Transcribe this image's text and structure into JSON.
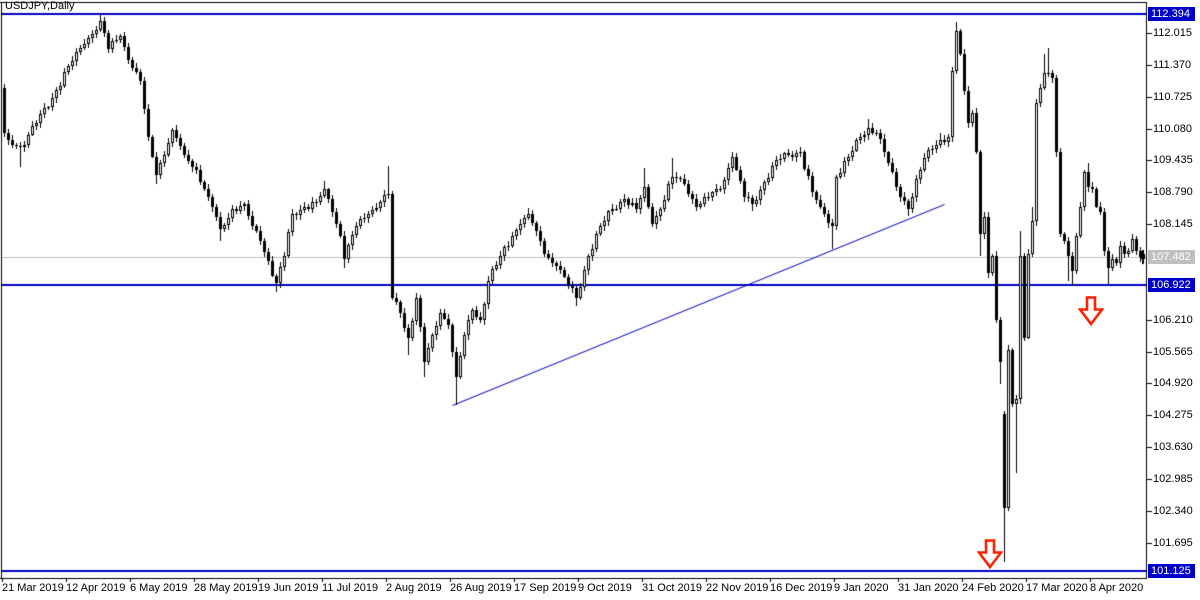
{
  "window": {
    "symbol_label": "USDJPY,Daily"
  },
  "colors": {
    "background": "#FFFFFF",
    "candle_outline": "#000000",
    "bull_fill": "#FFFFFF",
    "bear_fill": "#000000",
    "object_blue": "#0000C8",
    "current_price_gray": "#C0C0C0",
    "arrow_red": "#FF2200",
    "axis_black": "#000000"
  },
  "y_axis": {
    "ticks": [
      "112.015",
      "111.370",
      "110.725",
      "110.080",
      "109.435",
      "108.790",
      "108.145",
      "106.210",
      "105.565",
      "104.920",
      "104.275",
      "103.630",
      "102.985",
      "102.340",
      "101.695"
    ],
    "badges": [
      {
        "value": "112.394",
        "style": "blue"
      },
      {
        "value": "107.482",
        "style": "gray"
      },
      {
        "value": "106.922",
        "style": "blue"
      },
      {
        "value": "101.125",
        "style": "blue"
      }
    ]
  },
  "x_axis": {
    "labels": [
      "21 Mar 2019",
      "12 Apr 2019",
      "6 May 2019",
      "28 May 2019",
      "19 Jun 2019",
      "11 Jul 2019",
      "2 Aug 2019",
      "26 Aug 2019",
      "17 Sep 2019",
      "9 Oct 2019",
      "31 Oct 2019",
      "22 Nov 2019",
      "16 Dec 2019",
      "9 Jan 2020",
      "31 Jan 2020",
      "24 Feb 2020",
      "17 Mar 2020",
      "8 Apr 2020"
    ],
    "bars_per_label": 16
  },
  "chart_data": {
    "type": "candlestick",
    "title": "USDJPY,Daily",
    "symbol": "USDJPY",
    "timeframe": "Daily",
    "ylim": [
      100.8,
      112.6
    ],
    "y_tick_step": 0.645,
    "grid": false,
    "bars_total": 285,
    "first_bar_open": 110.9,
    "last_price": 107.482,
    "x_labels": [
      "21 Mar 2019",
      "12 Apr 2019",
      "6 May 2019",
      "28 May 2019",
      "19 Jun 2019",
      "11 Jul 2019",
      "2 Aug 2019",
      "26 Aug 2019",
      "17 Sep 2019",
      "9 Oct 2019",
      "31 Oct 2019",
      "22 Nov 2019",
      "16 Dec 2019",
      "9 Jan 2020",
      "31 Jan 2020",
      "24 Feb 2020",
      "17 Mar 2020",
      "8 Apr 2020"
    ],
    "objects": {
      "horizontal_lines": [
        112.394,
        106.922,
        101.125
      ],
      "current_price_line": 107.482,
      "trendline": {
        "from_bar": 112,
        "from_price": 104.49,
        "to_bar": 235,
        "to_price": 108.55
      },
      "arrows_down": [
        {
          "bar": 246.5,
          "tip_price": 101.19
        },
        {
          "bar": 271.8,
          "tip_price": 106.1
        }
      ]
    },
    "close_anchors_note": "swing points read from chart: [bar, close, wick_low?, wick_high?, open_override?]",
    "close_anchors": [
      [
        0,
        110.0
      ],
      [
        1,
        109.85
      ],
      [
        4,
        109.7,
        109.3
      ],
      [
        8,
        110.2
      ],
      [
        12,
        110.7
      ],
      [
        16,
        111.35
      ],
      [
        20,
        111.8
      ],
      [
        24,
        112.25,
        null,
        112.39
      ],
      [
        26,
        111.7
      ],
      [
        29,
        111.95
      ],
      [
        32,
        111.3
      ],
      [
        34,
        111.05
      ],
      [
        36,
        109.9
      ],
      [
        38,
        109.15,
        108.95
      ],
      [
        42,
        110.05
      ],
      [
        45,
        109.55
      ],
      [
        48,
        109.25
      ],
      [
        51,
        108.7
      ],
      [
        54,
        108.05,
        107.8
      ],
      [
        57,
        108.45
      ],
      [
        60,
        108.55
      ],
      [
        62,
        108.1
      ],
      [
        64,
        107.8
      ],
      [
        66,
        107.4
      ],
      [
        68,
        106.95,
        106.78
      ],
      [
        70,
        107.5
      ],
      [
        72,
        108.35
      ],
      [
        75,
        108.5
      ],
      [
        78,
        108.6
      ],
      [
        80,
        108.85,
        null,
        109.02
      ],
      [
        82,
        108.4
      ],
      [
        84,
        107.9
      ],
      [
        85,
        107.45,
        107.25
      ],
      [
        88,
        108.1
      ],
      [
        91,
        108.35
      ],
      [
        94,
        108.6
      ],
      [
        96,
        108.75,
        null,
        109.32
      ],
      [
        97,
        106.65
      ],
      [
        99,
        106.35
      ],
      [
        101,
        105.85,
        105.5
      ],
      [
        103,
        106.65
      ],
      [
        105,
        105.35,
        105.05
      ],
      [
        107,
        105.9
      ],
      [
        109,
        106.35
      ],
      [
        111,
        106.1
      ],
      [
        113,
        105.05,
        104.49
      ],
      [
        115,
        105.9
      ],
      [
        117,
        106.4
      ],
      [
        119,
        106.2
      ],
      [
        121,
        107.0
      ],
      [
        124,
        107.5
      ],
      [
        127,
        107.9
      ],
      [
        129,
        108.15
      ],
      [
        131,
        108.35,
        null,
        108.48
      ],
      [
        133,
        108.0
      ],
      [
        135,
        107.55
      ],
      [
        138,
        107.3
      ],
      [
        141,
        106.9
      ],
      [
        143,
        106.65,
        106.48
      ],
      [
        146,
        107.5
      ],
      [
        149,
        108.1
      ],
      [
        152,
        108.45
      ],
      [
        155,
        108.65
      ],
      [
        158,
        108.45
      ],
      [
        160,
        108.9,
        null,
        109.29
      ],
      [
        162,
        108.15
      ],
      [
        164,
        108.45
      ],
      [
        167,
        109.1,
        null,
        109.49
      ],
      [
        170,
        108.95
      ],
      [
        173,
        108.5
      ],
      [
        176,
        108.7
      ],
      [
        179,
        108.85
      ],
      [
        182,
        109.5,
        null,
        109.61
      ],
      [
        185,
        108.7
      ],
      [
        187,
        108.55,
        108.42
      ],
      [
        190,
        109.0
      ],
      [
        193,
        109.45
      ],
      [
        196,
        109.55
      ],
      [
        199,
        109.6
      ],
      [
        202,
        108.8
      ],
      [
        204,
        108.5
      ],
      [
        205,
        108.35
      ],
      [
        207,
        108.1,
        107.65
      ],
      [
        208,
        109.1
      ],
      [
        211,
        109.5
      ],
      [
        214,
        109.9
      ],
      [
        216,
        110.1,
        null,
        110.28
      ],
      [
        218,
        110.0
      ],
      [
        220,
        109.6
      ],
      [
        223,
        108.9
      ],
      [
        226,
        108.45,
        108.31
      ],
      [
        229,
        109.25
      ],
      [
        231,
        109.65
      ],
      [
        234,
        109.85,
        null,
        110.0
      ],
      [
        236,
        109.9
      ],
      [
        237,
        111.25
      ],
      [
        238,
        112.05,
        null,
        112.23
      ],
      [
        239,
        111.6
      ],
      [
        240,
        110.85
      ],
      [
        241,
        110.2
      ],
      [
        242,
        110.4
      ],
      [
        243,
        109.6
      ],
      [
        244,
        107.95,
        107.5
      ],
      [
        245,
        108.3
      ],
      [
        246,
        107.15
      ],
      [
        247,
        107.5
      ],
      [
        248,
        106.2
      ],
      [
        249,
        105.35,
        104.9
      ],
      [
        250,
        102.4,
        101.3,
        null,
        104.3
      ],
      [
        251,
        105.6
      ],
      [
        252,
        104.5
      ],
      [
        253,
        104.6,
        103.1
      ],
      [
        254,
        107.5,
        null,
        108.0
      ],
      [
        255,
        105.85
      ],
      [
        256,
        107.55
      ],
      [
        257,
        108.2,
        null,
        108.5
      ],
      [
        258,
        110.6
      ],
      [
        259,
        110.9
      ],
      [
        260,
        111.2,
        null,
        111.59
      ],
      [
        261,
        111.2,
        null,
        111.71
      ],
      [
        262,
        111.1
      ],
      [
        263,
        109.6
      ],
      [
        264,
        107.95
      ],
      [
        265,
        107.8
      ],
      [
        266,
        107.5,
        107.0
      ],
      [
        267,
        107.2,
        106.9
      ],
      [
        268,
        107.9
      ],
      [
        269,
        108.5
      ],
      [
        270,
        109.2
      ],
      [
        271,
        108.9,
        null,
        109.38
      ],
      [
        272,
        108.85
      ],
      [
        273,
        108.5
      ],
      [
        274,
        108.4
      ],
      [
        275,
        107.6
      ],
      [
        276,
        107.25,
        106.93
      ],
      [
        277,
        107.45
      ],
      [
        278,
        107.35
      ],
      [
        279,
        107.7
      ],
      [
        280,
        107.55
      ],
      [
        281,
        107.6
      ],
      [
        282,
        107.85
      ],
      [
        283,
        107.6
      ],
      [
        284,
        107.482
      ]
    ]
  }
}
